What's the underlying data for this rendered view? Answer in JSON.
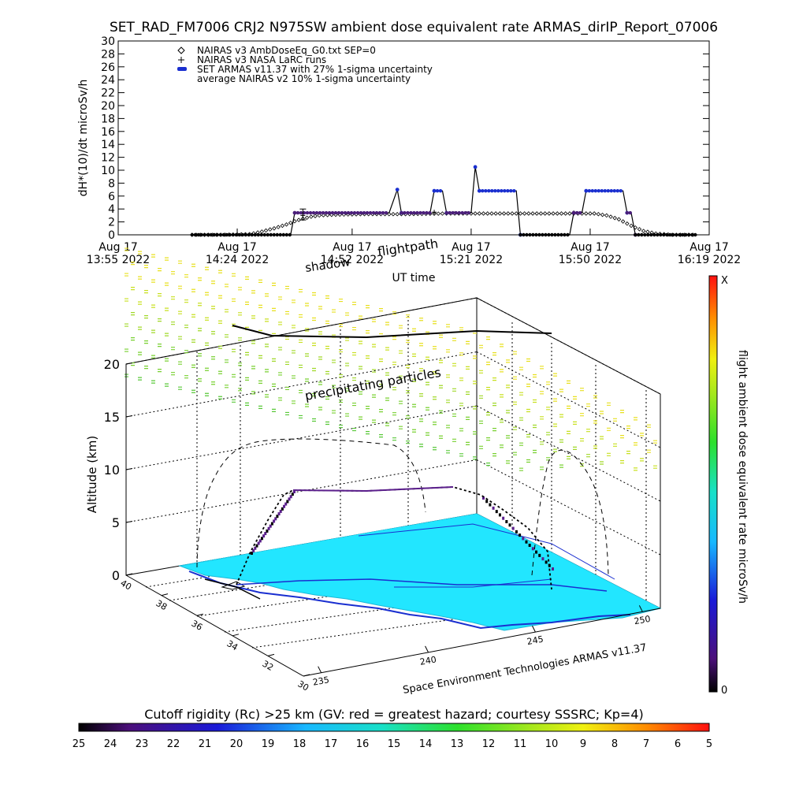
{
  "chart_data": [
    {
      "type": "scatter",
      "title": "SET_RAD_FM7006  CRJ2 N975SW ambient dose equivalent rate ARMAS_dirIP_Report_07006",
      "xlabel": "UT time",
      "ylabel": "dH*(10)/dt microSv/h",
      "xlim": [
        "2022-08-17T13:55",
        "2022-08-17T16:19"
      ],
      "ylim": [
        0,
        30
      ],
      "yticks": [
        0,
        2,
        4,
        6,
        8,
        10,
        12,
        14,
        16,
        18,
        20,
        22,
        24,
        26,
        28,
        30
      ],
      "xticks": [
        {
          "line1": "Aug 17",
          "line2": "13:55 2022",
          "t": "2022-08-17T13:55"
        },
        {
          "line1": "Aug 17",
          "line2": "14:24 2022",
          "t": "2022-08-17T14:24"
        },
        {
          "line1": "Aug 17",
          "line2": "14:52 2022",
          "t": "2022-08-17T14:52"
        },
        {
          "line1": "Aug 17",
          "line2": "15:21 2022",
          "t": "2022-08-17T15:21"
        },
        {
          "line1": "Aug 17",
          "line2": "15:50 2022",
          "t": "2022-08-17T15:50"
        },
        {
          "line1": "Aug 17",
          "line2": "16:19 2022",
          "t": "2022-08-17T16:19"
        }
      ],
      "legend": [
        {
          "symbol": "diamond",
          "label": "NAIRAS v3 AmbDoseEq_G0.txt SEP=0"
        },
        {
          "symbol": "plus",
          "label": "NAIRAS v3 NASA LaRC runs"
        },
        {
          "symbol": "blue-dot",
          "label": "SET ARMAS v11.37 with 27% 1-sigma uncertainty"
        },
        {
          "symbol": "none",
          "label": "average NAIRAS v2 10% 1-sigma uncertainty"
        }
      ],
      "legend_position": "top-left",
      "series": [
        {
          "name": "NAIRAS v3 AmbDoseEq_G0.txt SEP=0",
          "marker": "diamond",
          "color": "#000000",
          "points": [
            [
              "2022-08-17T14:13",
              0
            ],
            [
              "2022-08-17T14:20",
              0
            ],
            [
              "2022-08-17T14:27",
              0.1
            ],
            [
              "2022-08-17T14:30",
              0.5
            ],
            [
              "2022-08-17T14:33",
              1.0
            ],
            [
              "2022-08-17T14:36",
              1.6
            ],
            [
              "2022-08-17T14:38",
              2.1
            ],
            [
              "2022-08-17T14:40",
              2.5
            ],
            [
              "2022-08-17T14:42",
              2.8
            ],
            [
              "2022-08-17T14:44",
              3.0
            ],
            [
              "2022-08-17T14:47",
              3.1
            ],
            [
              "2022-08-17T14:55",
              3.2
            ],
            [
              "2022-08-17T15:05",
              3.2
            ],
            [
              "2022-08-17T15:15",
              3.3
            ],
            [
              "2022-08-17T15:25",
              3.3
            ],
            [
              "2022-08-17T15:35",
              3.3
            ],
            [
              "2022-08-17T15:45",
              3.3
            ],
            [
              "2022-08-17T15:51",
              3.3
            ],
            [
              "2022-08-17T15:54",
              3.0
            ],
            [
              "2022-08-17T15:57",
              2.4
            ],
            [
              "2022-08-17T16:00",
              1.4
            ],
            [
              "2022-08-17T16:03",
              0.6
            ],
            [
              "2022-08-17T16:06",
              0.2
            ],
            [
              "2022-08-17T16:10",
              0
            ],
            [
              "2022-08-17T16:16",
              0
            ]
          ]
        },
        {
          "name": "NAIRAS v3 NASA LaRC runs",
          "marker": "plus",
          "color": "#000000",
          "points": [
            [
              "2022-08-17T14:40",
              3.0
            ],
            [
              "2022-08-17T15:12",
              3.5
            ],
            [
              "2022-08-17T15:46",
              3.4
            ]
          ]
        },
        {
          "name": "SET ARMAS v11.37 with 27% 1-sigma uncertainty",
          "marker": "dot",
          "color": "#1a2fd0",
          "points": [
            [
              "2022-08-17T14:13",
              0
            ],
            [
              "2022-08-17T14:37",
              0
            ],
            [
              "2022-08-17T14:38",
              3.4
            ],
            [
              "2022-08-17T15:01",
              3.4
            ],
            [
              "2022-08-17T15:03",
              7.0
            ],
            [
              "2022-08-17T15:04",
              3.4
            ],
            [
              "2022-08-17T15:11",
              3.4
            ],
            [
              "2022-08-17T15:12",
              6.8
            ],
            [
              "2022-08-17T15:14",
              6.8
            ],
            [
              "2022-08-17T15:15",
              3.4
            ],
            [
              "2022-08-17T15:21",
              3.4
            ],
            [
              "2022-08-17T15:22",
              10.5
            ],
            [
              "2022-08-17T15:23",
              6.8
            ],
            [
              "2022-08-17T15:32",
              6.8
            ],
            [
              "2022-08-17T15:33",
              0
            ],
            [
              "2022-08-17T15:45",
              0
            ],
            [
              "2022-08-17T15:46",
              3.4
            ],
            [
              "2022-08-17T15:48",
              3.4
            ],
            [
              "2022-08-17T15:49",
              6.8
            ],
            [
              "2022-08-17T15:58",
              6.8
            ],
            [
              "2022-08-17T15:59",
              3.4
            ],
            [
              "2022-08-17T16:00",
              3.4
            ],
            [
              "2022-08-17T16:01",
              0
            ],
            [
              "2022-08-17T16:16",
              0
            ]
          ]
        }
      ],
      "error_bar": {
        "t": "2022-08-17T14:40",
        "low": 2.3,
        "high": 4.0
      }
    },
    {
      "type": "3d-flightpath",
      "zlabel": "Altitude (km)",
      "zticks": [
        0,
        5,
        10,
        15,
        20
      ],
      "latitude_ticks": [
        30,
        32,
        34,
        36,
        38,
        40
      ],
      "longitude_ticks": [
        235,
        240,
        245,
        250
      ],
      "annotations": [
        "shadow",
        "flightpath",
        "precipitating particles"
      ],
      "credit": "Space Environment Technologies ARMAS v11.37",
      "right_colorbar": {
        "label": "flight ambient dose equivalent rate microSv/h",
        "top_label": "X",
        "bottom_label": "0"
      },
      "flight_altitude_km": [
        {
          "lon": 237.2,
          "lat": 33.5,
          "alt": 0
        },
        {
          "lon": 238.0,
          "lat": 33.9,
          "alt": 4
        },
        {
          "lon": 238.8,
          "lat": 34.4,
          "alt": 7.5
        },
        {
          "lon": 240.5,
          "lat": 35.5,
          "alt": 7.6
        },
        {
          "lon": 243.0,
          "lat": 36.8,
          "alt": 7.8
        },
        {
          "lon": 245.5,
          "lat": 38.0,
          "alt": 7.8
        },
        {
          "lon": 247.5,
          "lat": 38.6,
          "alt": 5.5
        },
        {
          "lon": 248.5,
          "lat": 38.9,
          "alt": 0
        }
      ]
    },
    {
      "type": "colorbar",
      "title": "Cutoff rigidity (Rc) >25 km (GV: red = greatest hazard; courtesy SSSRC; Kp=4)",
      "ticks": [
        25,
        24,
        23,
        22,
        21,
        20,
        19,
        18,
        17,
        16,
        15,
        14,
        13,
        12,
        11,
        10,
        9,
        8,
        7,
        6,
        5
      ]
    }
  ],
  "colors": {
    "armas": "#1a2fd0",
    "flight_purple": "#5b1f8c",
    "ground": "#22e6ff",
    "particles": "#8fd820"
  }
}
